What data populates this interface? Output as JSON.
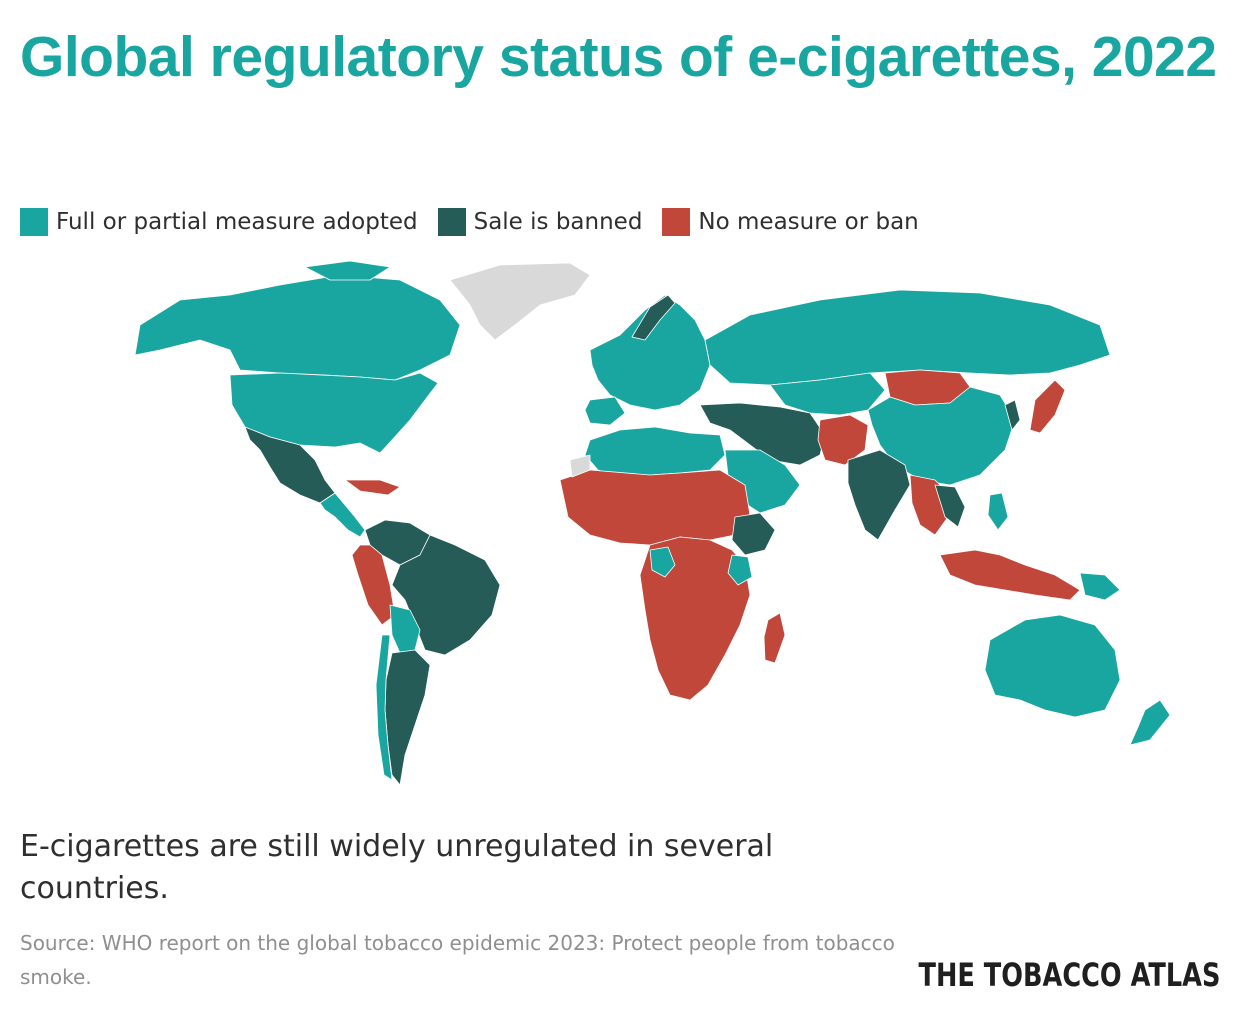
{
  "title": "Global regulatory status of e-cigarettes, 2022",
  "legend": {
    "items": [
      {
        "label": "Full or partial measure adopted",
        "color": "#1aa6a0"
      },
      {
        "label": "Sale is banned",
        "color": "#255c57"
      },
      {
        "label": "No measure or ban",
        "color": "#c1473b"
      }
    ]
  },
  "no_data_color": "#d9d9d9",
  "subtitle": "E-cigarettes are still widely unregulated in several countries.",
  "source": "Source: WHO report on the global tobacco epidemic 2023: Protect people from tobacco smoke.",
  "brand": "THE TOBACCO ATLAS"
}
